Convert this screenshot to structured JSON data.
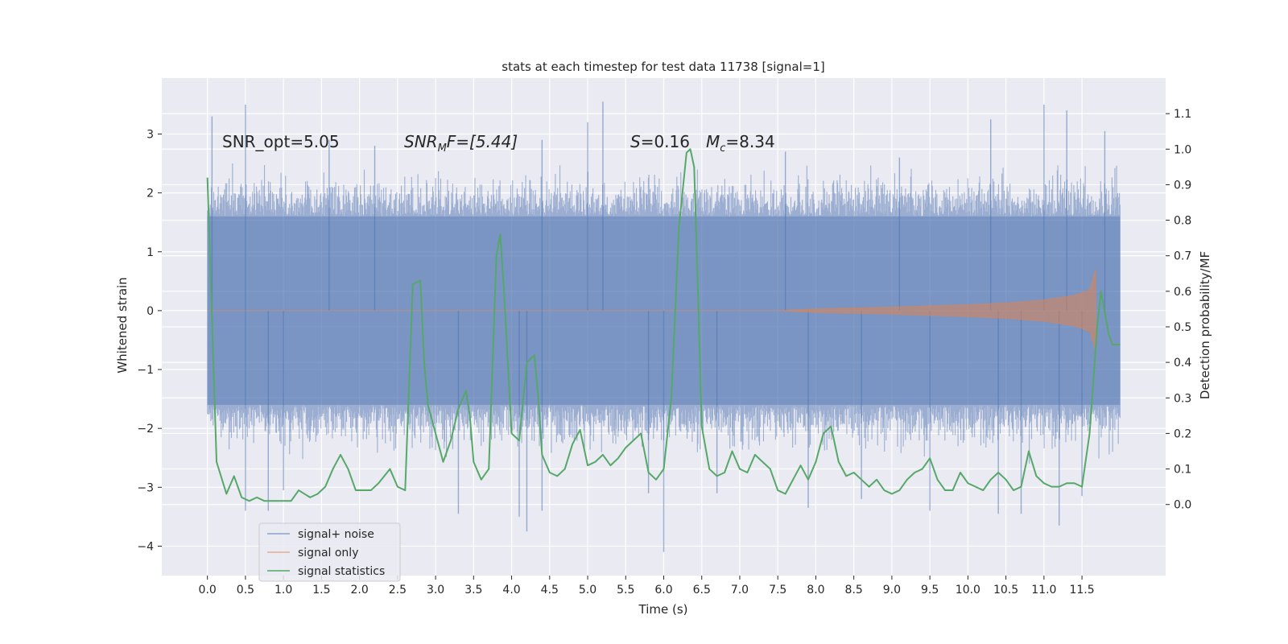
{
  "chart_data": {
    "type": "line",
    "title": "stats at each timestep for test data 11738 [signal=1]",
    "xlabel": "Time (s)",
    "ylabel_left": "Whitened strain",
    "ylabel_right": "Detection probability/MF",
    "xlim": [
      -0.6,
      12.6
    ],
    "ylim_left": [
      -4.5,
      3.95
    ],
    "ylim_right": [
      -0.2,
      1.2
    ],
    "x_ticks": [
      0.0,
      0.5,
      1.0,
      1.5,
      2.0,
      2.5,
      3.0,
      3.5,
      4.0,
      4.5,
      5.0,
      5.5,
      6.0,
      6.5,
      7.0,
      7.5,
      8.0,
      8.5,
      9.0,
      9.5,
      10.0,
      10.5,
      11.0,
      11.5
    ],
    "x_tick_labels": [
      "0.0",
      "0.5",
      "1.0",
      "1.5",
      "2.0",
      "2.5",
      "3.0",
      "3.5",
      "4.0",
      "4.5",
      "5.0",
      "5.5",
      "6.0",
      "6.5",
      "7.0",
      "7.5",
      "8.0",
      "8.5",
      "9.0",
      "9.5",
      "10.0",
      "10.5",
      "11.0",
      "11.5"
    ],
    "y_left_ticks": [
      -4,
      -3,
      -2,
      -1,
      0,
      1,
      2,
      3
    ],
    "y_left_tick_labels": [
      "−4",
      "−3",
      "−2",
      "−1",
      "0",
      "1",
      "2",
      "3"
    ],
    "y_right_ticks": [
      0.0,
      0.1,
      0.2,
      0.3,
      0.4,
      0.5,
      0.6,
      0.7,
      0.8,
      0.9,
      1.0,
      1.1
    ],
    "y_right_tick_labels": [
      "0.0",
      "0.1",
      "0.2",
      "0.3",
      "0.4",
      "0.5",
      "0.6",
      "0.7",
      "0.8",
      "0.9",
      "1.0",
      "1.1"
    ],
    "grid": true,
    "legend_position": "bottom-left",
    "annotations": {
      "snr_opt": "SNR_opt=5.05",
      "snr_mf_base": "SNR",
      "snr_mf_sub": "M",
      "snr_mf_rest": "F=[5.44]",
      "s_sym": "S",
      "s_val": "=0.16",
      "mc_sym": "M",
      "mc_sub": "c",
      "mc_val": "=8.34"
    },
    "colors": {
      "background": "#eaeaf2",
      "grid": "#ffffff",
      "noise": "#4c72b0",
      "signal": "#dd8452",
      "stats": "#55a868"
    },
    "series": [
      {
        "name": "signal+ noise",
        "axis": "left",
        "t_range": [
          0.0,
          12.0
        ],
        "core_amplitude": 1.6,
        "typical_max": 2.5,
        "typical_min": -2.6,
        "spikes_up": [
          [
            0.06,
            3.3
          ],
          [
            0.5,
            3.5
          ],
          [
            1.6,
            2.9
          ],
          [
            2.2,
            2.8
          ],
          [
            4.4,
            2.9
          ],
          [
            5.0,
            3.2
          ],
          [
            5.2,
            3.55
          ],
          [
            7.6,
            2.7
          ],
          [
            9.1,
            2.6
          ],
          [
            10.3,
            3.25
          ],
          [
            11.0,
            3.5
          ],
          [
            11.3,
            3.4
          ],
          [
            11.8,
            3.05
          ]
        ],
        "spikes_down": [
          [
            0.5,
            -3.4
          ],
          [
            0.8,
            -3.4
          ],
          [
            1.0,
            -3.05
          ],
          [
            3.3,
            -3.45
          ],
          [
            4.1,
            -3.5
          ],
          [
            4.2,
            -3.75
          ],
          [
            4.4,
            -3.4
          ],
          [
            5.8,
            -3.1
          ],
          [
            6.0,
            -4.1
          ],
          [
            6.7,
            -3.1
          ],
          [
            7.9,
            -3.35
          ],
          [
            8.6,
            -3.2
          ],
          [
            9.5,
            -3.4
          ],
          [
            10.4,
            -3.45
          ],
          [
            10.7,
            -3.45
          ],
          [
            11.2,
            -3.65
          ],
          [
            11.5,
            -3.15
          ]
        ]
      },
      {
        "name": "signal only",
        "axis": "left",
        "t_range": [
          0.0,
          11.7
        ],
        "envelope": [
          [
            0.0,
            0.0
          ],
          [
            7.5,
            0.0
          ],
          [
            8.0,
            0.03
          ],
          [
            9.0,
            0.06
          ],
          [
            10.0,
            0.1
          ],
          [
            10.5,
            0.13
          ],
          [
            11.0,
            0.18
          ],
          [
            11.4,
            0.26
          ],
          [
            11.6,
            0.35
          ],
          [
            11.68,
            0.7
          ]
        ]
      },
      {
        "name": "signal statistics",
        "axis": "right",
        "x": [
          0.0,
          0.12,
          0.25,
          0.35,
          0.45,
          0.55,
          0.65,
          0.75,
          0.85,
          0.95,
          1.1,
          1.2,
          1.35,
          1.45,
          1.55,
          1.65,
          1.75,
          1.85,
          1.95,
          2.05,
          2.15,
          2.25,
          2.4,
          2.5,
          2.6,
          2.7,
          2.8,
          2.85,
          2.9,
          3.0,
          3.1,
          3.2,
          3.3,
          3.4,
          3.45,
          3.5,
          3.6,
          3.7,
          3.8,
          3.85,
          3.9,
          3.95,
          4.0,
          4.1,
          4.2,
          4.3,
          4.35,
          4.4,
          4.5,
          4.6,
          4.7,
          4.8,
          4.9,
          5.0,
          5.1,
          5.2,
          5.3,
          5.4,
          5.5,
          5.6,
          5.7,
          5.8,
          5.9,
          6.0,
          6.1,
          6.2,
          6.3,
          6.35,
          6.4,
          6.45,
          6.5,
          6.6,
          6.7,
          6.8,
          6.9,
          7.0,
          7.1,
          7.2,
          7.3,
          7.4,
          7.5,
          7.6,
          7.7,
          7.8,
          7.9,
          8.0,
          8.1,
          8.2,
          8.3,
          8.4,
          8.5,
          8.6,
          8.7,
          8.8,
          8.9,
          9.0,
          9.1,
          9.2,
          9.3,
          9.4,
          9.5,
          9.6,
          9.7,
          9.8,
          9.9,
          10.0,
          10.1,
          10.2,
          10.3,
          10.4,
          10.5,
          10.6,
          10.7,
          10.8,
          10.9,
          11.0,
          11.1,
          11.2,
          11.3,
          11.4,
          11.5,
          11.6,
          11.7,
          11.75,
          11.85,
          11.9,
          12.0
        ],
        "values": [
          0.92,
          0.12,
          0.03,
          0.08,
          0.02,
          0.01,
          0.02,
          0.01,
          0.01,
          0.01,
          0.01,
          0.04,
          0.02,
          0.03,
          0.05,
          0.1,
          0.14,
          0.1,
          0.04,
          0.04,
          0.04,
          0.06,
          0.1,
          0.05,
          0.04,
          0.62,
          0.63,
          0.4,
          0.28,
          0.2,
          0.12,
          0.18,
          0.27,
          0.32,
          0.25,
          0.12,
          0.07,
          0.1,
          0.7,
          0.76,
          0.6,
          0.4,
          0.2,
          0.18,
          0.4,
          0.42,
          0.3,
          0.14,
          0.09,
          0.08,
          0.1,
          0.17,
          0.21,
          0.11,
          0.12,
          0.14,
          0.11,
          0.13,
          0.16,
          0.18,
          0.2,
          0.09,
          0.07,
          0.1,
          0.3,
          0.78,
          0.99,
          1.0,
          0.95,
          0.6,
          0.22,
          0.1,
          0.08,
          0.09,
          0.15,
          0.1,
          0.09,
          0.14,
          0.12,
          0.1,
          0.04,
          0.03,
          0.07,
          0.11,
          0.07,
          0.12,
          0.2,
          0.22,
          0.12,
          0.08,
          0.09,
          0.07,
          0.05,
          0.07,
          0.04,
          0.03,
          0.04,
          0.07,
          0.09,
          0.1,
          0.13,
          0.07,
          0.04,
          0.04,
          0.09,
          0.06,
          0.05,
          0.04,
          0.07,
          0.09,
          0.07,
          0.04,
          0.05,
          0.15,
          0.08,
          0.06,
          0.05,
          0.05,
          0.06,
          0.06,
          0.05,
          0.2,
          0.5,
          0.6,
          0.48,
          0.45,
          0.45
        ]
      }
    ]
  }
}
